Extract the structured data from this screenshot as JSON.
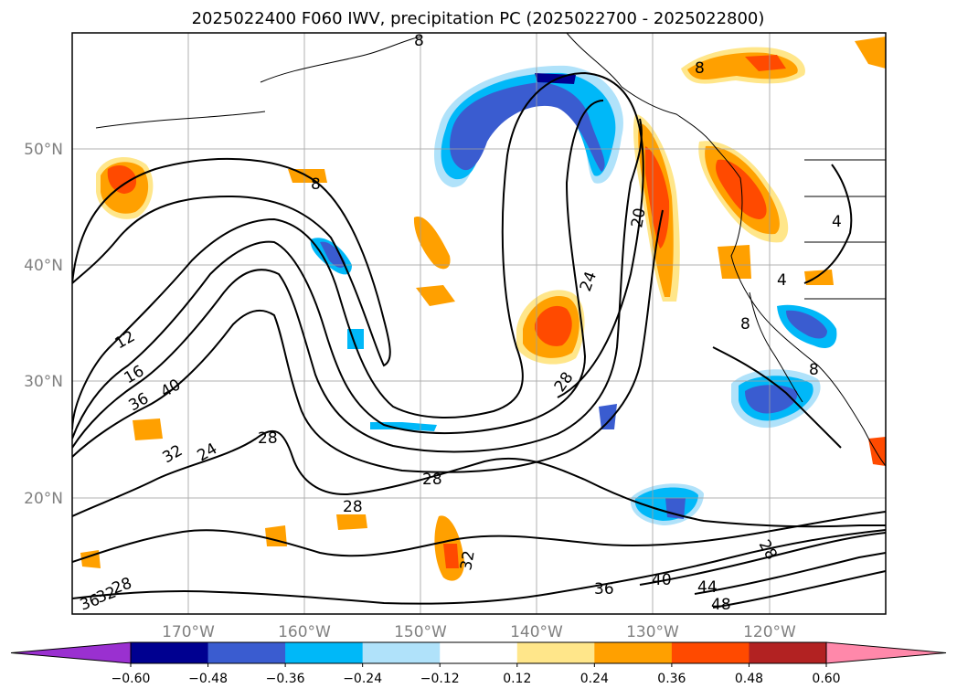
{
  "title": "2025022400 F060 IWV, precipitation PC (2025022700 - 2025022800)",
  "map": {
    "lon_range": [
      -180,
      -110
    ],
    "lat_range": [
      10,
      60
    ],
    "lat_labels": [
      "50°N",
      "40°N",
      "30°N",
      "20°N"
    ],
    "lon_labels": [
      "170°W",
      "160°W",
      "150°W",
      "140°W",
      "130°W",
      "120°W"
    ],
    "gridlines": true
  },
  "colorbar": {
    "bounds": [
      -0.6,
      -0.48,
      -0.36,
      -0.24,
      -0.12,
      0.12,
      0.24,
      0.36,
      0.48,
      0.6
    ],
    "tick_labels": [
      "−0.60",
      "−0.48",
      "−0.36",
      "−0.24",
      "−0.12",
      "0.12",
      "0.24",
      "0.36",
      "0.48",
      "0.60"
    ],
    "colors": [
      "#000090",
      "#3a5cd0",
      "#00b8f8",
      "#b0e2fa",
      "#ffffff",
      "#ffe68a",
      "#ffa000",
      "#ff4a00",
      "#b22222"
    ],
    "under_color": "#9a30d0",
    "over_color": "#ff88aa",
    "extend": "both"
  },
  "contour_labels": [
    "12",
    "16",
    "36",
    "40",
    "32",
    "24",
    "28",
    "28",
    "28",
    "20",
    "24",
    "28",
    "32",
    "36",
    "40",
    "44",
    "48",
    "28",
    "4",
    "4",
    "8",
    "8",
    "8",
    "8",
    "8",
    "28",
    "32",
    "36"
  ]
}
